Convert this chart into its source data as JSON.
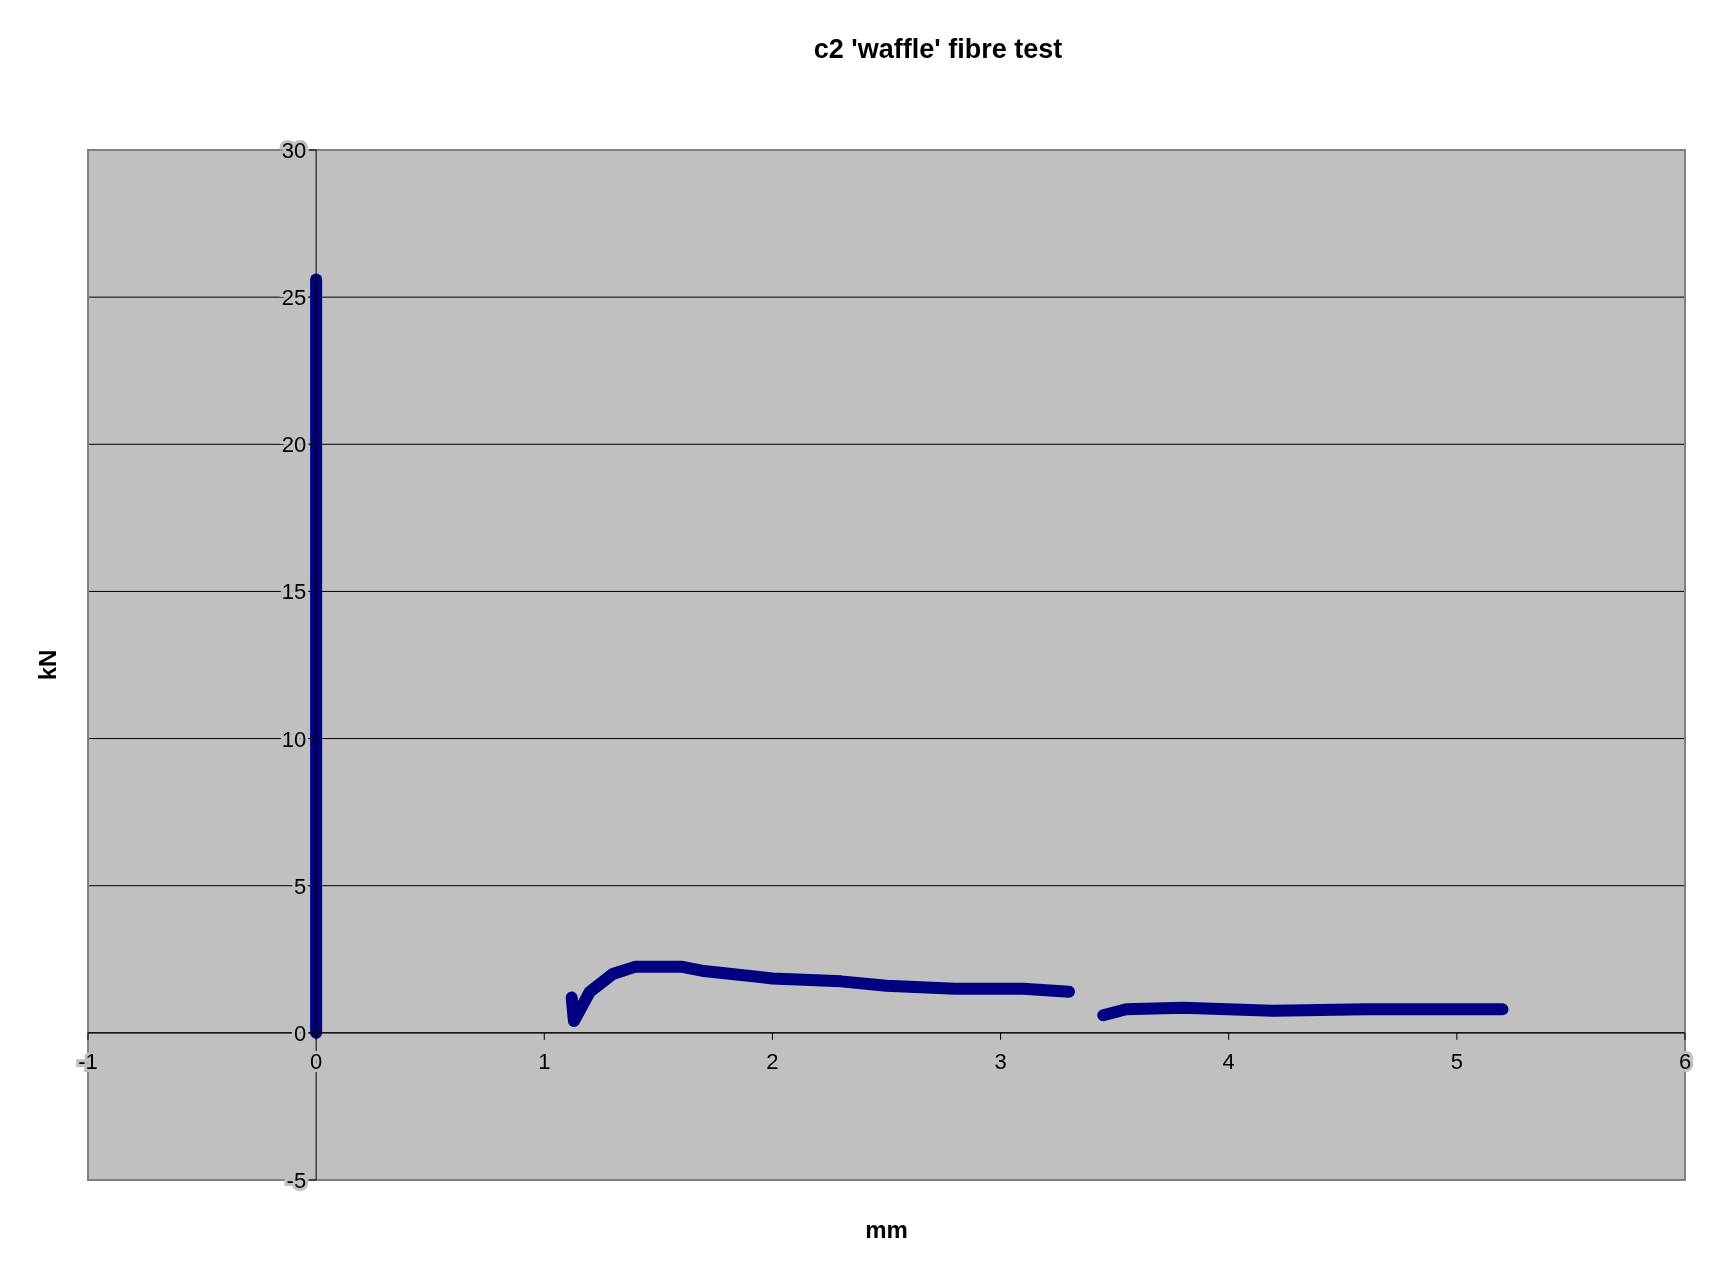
{
  "chart_data": {
    "type": "line",
    "title": "c2 'waffle' fibre test",
    "xlabel": "mm",
    "ylabel": "kN",
    "series": [
      {
        "color": "#000080",
        "x": [
          0,
          0,
          0,
          0,
          0,
          0
        ],
        "values": [
          0,
          5,
          10,
          15,
          20,
          25.6
        ]
      },
      {
        "color": "#000080",
        "x": [
          1.12,
          1.13,
          1.2,
          1.3,
          1.4,
          1.6,
          1.7,
          2.0,
          2.3,
          2.5,
          2.8,
          3.1,
          3.3
        ],
        "values": [
          1.2,
          0.4,
          1.4,
          2.0,
          2.25,
          2.25,
          2.1,
          1.85,
          1.75,
          1.6,
          1.5,
          1.5,
          1.4
        ]
      },
      {
        "color": "#000080",
        "x": [
          3.45,
          3.55,
          3.8,
          4.2,
          4.6,
          5.0,
          5.2
        ],
        "values": [
          0.6,
          0.8,
          0.85,
          0.75,
          0.8,
          0.8,
          0.8
        ]
      }
    ],
    "xlim": [
      -1,
      6
    ],
    "xticks": [
      -1,
      0,
      1,
      2,
      3,
      4,
      5,
      6
    ],
    "ylim": [
      -5,
      30
    ],
    "yticks": [
      -5,
      0,
      5,
      10,
      15,
      20,
      25,
      30
    ],
    "grid": "y",
    "marker": "none",
    "line_style": "solid"
  }
}
